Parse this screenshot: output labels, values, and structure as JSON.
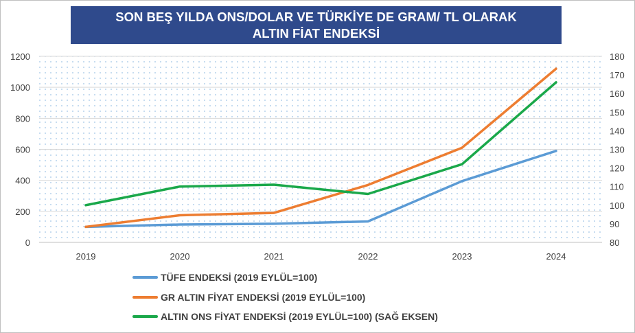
{
  "title": {
    "line1": "SON BEŞ YILDA ONS/DOLAR VE TÜRKİYE DE GRAM/ TL OLARAK",
    "line2": "ALTIN FİAT ENDEKSİ"
  },
  "colors": {
    "title_bg": "#2f4a8c",
    "plot_dots": "#9dc3e6",
    "grid": "#d9d9d9"
  },
  "chart_data": {
    "type": "line",
    "categories": [
      "2019",
      "2020",
      "2021",
      "2022",
      "2023",
      "2024"
    ],
    "y_left": {
      "min": 0,
      "max": 1200,
      "step": 200,
      "ticks": [
        "0",
        "200",
        "400",
        "600",
        "800",
        "1000",
        "1200"
      ]
    },
    "y_right": {
      "min": 80,
      "max": 180,
      "step": 10,
      "ticks": [
        "80",
        "90",
        "100",
        "110",
        "120",
        "130",
        "140",
        "150",
        "160",
        "170",
        "180"
      ]
    },
    "grid": true,
    "legend_position": "bottom",
    "series": [
      {
        "name": "TÜFE ENDEKSİ (2019 EYLÜL=100)",
        "axis": "left",
        "color": "#5b9bd5",
        "values": [
          100,
          115,
          120,
          135,
          395,
          590
        ]
      },
      {
        "name": "GR ALTIN FİYAT ENDEKSİ (2019 EYLÜL=100)",
        "axis": "left",
        "color": "#ed7d31",
        "values": [
          100,
          175,
          190,
          370,
          610,
          1120
        ]
      },
      {
        "name": "ALTIN ONS FİYAT ENDEKSİ (2019 EYLÜL=100) (SAĞ EKSEN)",
        "axis": "right",
        "color": "#1aa84a",
        "values": [
          100,
          110,
          111,
          106,
          122,
          166
        ]
      }
    ]
  }
}
